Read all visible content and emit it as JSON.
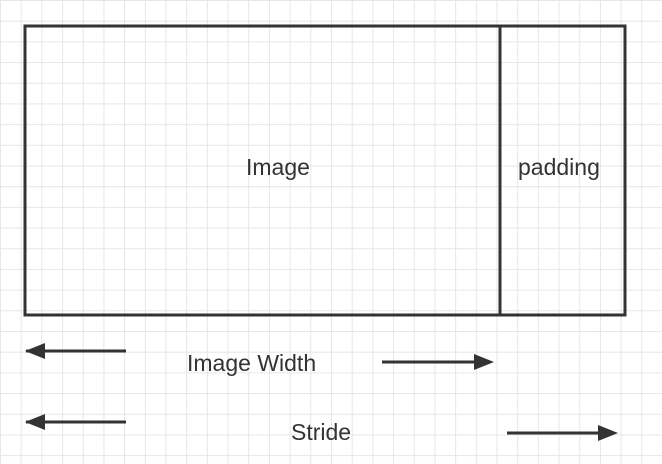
{
  "diagram": {
    "labels": {
      "image": "Image",
      "padding": "padding",
      "image_width": "Image Width",
      "stride": "Stride"
    },
    "colors": {
      "stroke": "#333333",
      "grid": "#e6e6e6",
      "text": "#333333"
    }
  }
}
